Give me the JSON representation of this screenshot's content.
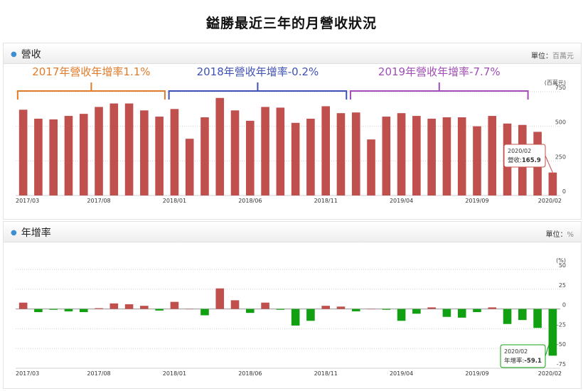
{
  "page_title": "鎰勝最近三年的月營收狀況",
  "revenue_panel": {
    "title": "營收",
    "unit_label": "單位",
    "unit_value": "百萬元"
  },
  "growth_panel": {
    "title": "年增率",
    "unit_label": "單位",
    "unit_value": "%"
  },
  "annotations": [
    {
      "text": "2017年營收年增率1.1%",
      "color": "#e07b2a",
      "from": "2017/03",
      "to": "2017/12"
    },
    {
      "text": "2018年營收年增率-0.2%",
      "color": "#3f51b5",
      "from": "2018/01",
      "to": "2018/12"
    },
    {
      "text": "2019年營收年增率-7.7%",
      "color": "#a04db5",
      "from": "2019/01",
      "to": "2019/12"
    }
  ],
  "tooltips": {
    "revenue": {
      "date": "2020/02",
      "label": "營收",
      "value": "165.9"
    },
    "growth": {
      "date": "2020/02",
      "label": "年增率",
      "value": "-59.1"
    }
  },
  "chart_data": [
    {
      "type": "bar",
      "title": "營收",
      "ylabel": "(百萬元)",
      "ylim": [
        0,
        750
      ],
      "yticks": [
        0,
        250,
        500,
        750
      ],
      "bar_color": "#c0504d",
      "grid": true,
      "x_tick_labels": [
        "2017/03",
        "2017/08",
        "2018/01",
        "2018/06",
        "2018/11",
        "2019/04",
        "2019/09",
        "2020/02"
      ],
      "categories": [
        "2017/03",
        "2017/04",
        "2017/05",
        "2017/06",
        "2017/07",
        "2017/08",
        "2017/09",
        "2017/10",
        "2017/11",
        "2017/12",
        "2018/01",
        "2018/02",
        "2018/03",
        "2018/04",
        "2018/05",
        "2018/06",
        "2018/07",
        "2018/08",
        "2018/09",
        "2018/10",
        "2018/11",
        "2018/12",
        "2019/01",
        "2019/02",
        "2019/03",
        "2019/04",
        "2019/05",
        "2019/06",
        "2019/07",
        "2019/08",
        "2019/09",
        "2019/10",
        "2019/11",
        "2019/12",
        "2020/01",
        "2020/02"
      ],
      "values": [
        620,
        555,
        550,
        575,
        590,
        640,
        665,
        665,
        615,
        570,
        625,
        410,
        565,
        705,
        615,
        540,
        640,
        635,
        525,
        555,
        645,
        595,
        600,
        405,
        570,
        595,
        575,
        555,
        565,
        565,
        500,
        575,
        520,
        510,
        460,
        165.9
      ]
    },
    {
      "type": "bar",
      "title": "年增率",
      "ylabel": "(%)",
      "ylim": [
        -75,
        50
      ],
      "yticks": [
        -75,
        -50,
        -25,
        0,
        25,
        50
      ],
      "positive_color": "#c0504d",
      "negative_color": "#11a011",
      "grid": true,
      "x_tick_labels": [
        "2017/03",
        "2017/08",
        "2018/01",
        "2018/06",
        "2018/11",
        "2019/04",
        "2019/09",
        "2020/02"
      ],
      "categories": [
        "2017/03",
        "2017/04",
        "2017/05",
        "2017/06",
        "2017/07",
        "2017/08",
        "2017/09",
        "2017/10",
        "2017/11",
        "2017/12",
        "2018/01",
        "2018/02",
        "2018/03",
        "2018/04",
        "2018/05",
        "2018/06",
        "2018/07",
        "2018/08",
        "2018/09",
        "2018/10",
        "2018/11",
        "2018/12",
        "2019/01",
        "2019/02",
        "2019/03",
        "2019/04",
        "2019/05",
        "2019/06",
        "2019/07",
        "2019/08",
        "2019/09",
        "2019/10",
        "2019/11",
        "2019/12",
        "2020/01",
        "2020/02"
      ],
      "values": [
        8,
        -4,
        -1,
        -3,
        -4,
        1,
        7,
        6,
        4,
        -2,
        9,
        0,
        -8,
        26,
        11,
        -5,
        8,
        -1,
        -21,
        -15,
        4,
        3,
        -3,
        0,
        -1,
        -15,
        -6,
        2,
        -10,
        -11,
        -4,
        2,
        -19,
        -14,
        -24,
        -59.1
      ]
    }
  ]
}
